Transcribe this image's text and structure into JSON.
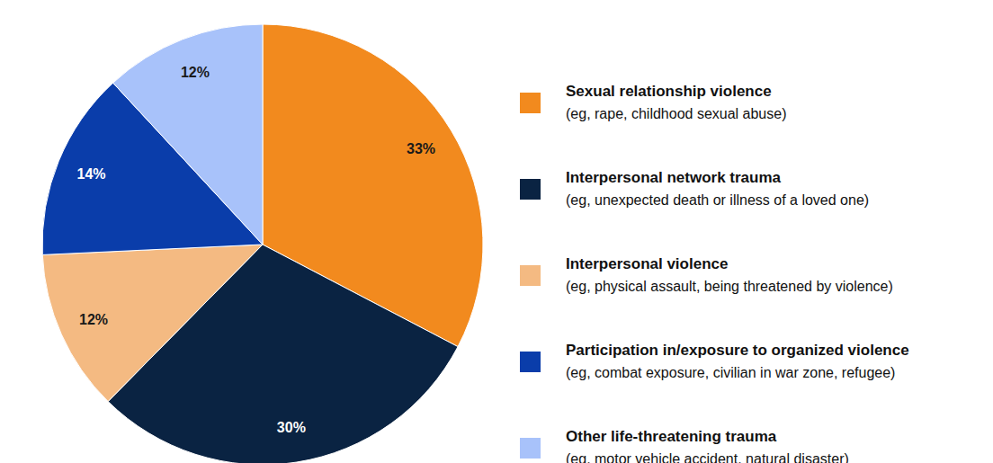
{
  "chart_data": {
    "type": "pie",
    "categories": [
      "Sexual relationship violence",
      "Interpersonal network trauma",
      "Interpersonal violence",
      "Participation in/exposure to organized violence",
      "Other life-threatening trauma"
    ],
    "descriptions": [
      "(eg, rape, childhood sexual abuse)",
      "(eg, unexpected death or illness of a loved one)",
      "(eg, physical assault, being threatened by violence)",
      "(eg, combat exposure, civilian in war zone, refugee)",
      "(eg, motor vehicle accident, natural disaster)"
    ],
    "values": [
      33,
      30,
      12,
      14,
      12
    ],
    "value_labels": [
      "33%",
      "30%",
      "12%",
      "14%",
      "12%"
    ],
    "colors": [
      "#f28a1e",
      "#0a2342",
      "#f4ba82",
      "#0a3daa",
      "#a8c2fa"
    ],
    "data_labels": true,
    "legend": "right"
  }
}
